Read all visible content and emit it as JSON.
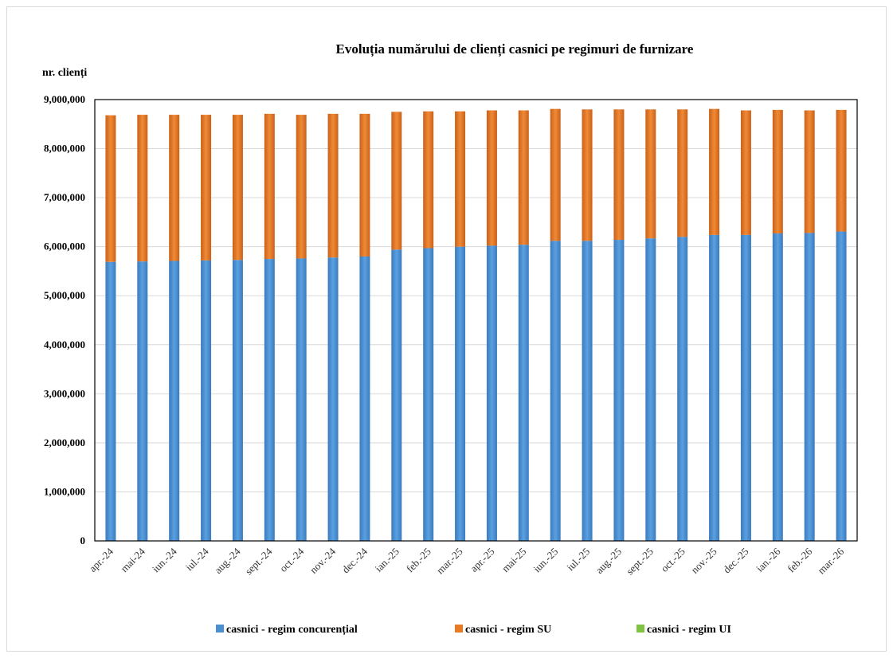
{
  "chart_data": {
    "type": "bar",
    "stacked": true,
    "title": "Evoluția numărului de clienți casnici pe regimuri de furnizare",
    "ylabel": "nr. clienți",
    "xlabel": "",
    "ylim": [
      0,
      9000000
    ],
    "yticks": [
      "0",
      "1,000,000",
      "2,000,000",
      "3,000,000",
      "4,000,000",
      "5,000,000",
      "6,000,000",
      "7,000,000",
      "8,000,000",
      "9,000,000"
    ],
    "ytick_values": [
      0,
      1000000,
      2000000,
      3000000,
      4000000,
      5000000,
      6000000,
      7000000,
      8000000,
      9000000
    ],
    "grid": true,
    "legend_position": "bottom",
    "categories": [
      "apr.-24",
      "mai-24",
      "iun.-24",
      "iul.-24",
      "aug.-24",
      "sept.-24",
      "oct.-24",
      "nov.-24",
      "dec.-24",
      "ian.-25",
      "feb.-25",
      "mar.-25",
      "apr.-25",
      "mai-25",
      "iun.-25",
      "iul.-25",
      "aug.-25",
      "sept.-25",
      "oct.-25",
      "nov.-25",
      "dec.-25",
      "ian.-26",
      "feb.-26",
      "mar.-26"
    ],
    "series": [
      {
        "name": "casnici - regim concurențial",
        "color": "#4a8fd0",
        "values": [
          5690000,
          5700000,
          5710000,
          5720000,
          5730000,
          5750000,
          5760000,
          5780000,
          5800000,
          5940000,
          5970000,
          6000000,
          6020000,
          6040000,
          6120000,
          6120000,
          6140000,
          6170000,
          6200000,
          6240000,
          6240000,
          6270000,
          6280000,
          6310000
        ]
      },
      {
        "name": "casnici - regim SU",
        "color": "#e97a23",
        "values": [
          2990000,
          2990000,
          2980000,
          2970000,
          2960000,
          2960000,
          2930000,
          2930000,
          2910000,
          2810000,
          2790000,
          2760000,
          2760000,
          2740000,
          2690000,
          2680000,
          2660000,
          2630000,
          2600000,
          2570000,
          2540000,
          2520000,
          2500000,
          2480000
        ]
      },
      {
        "name": "casnici - regim UI",
        "color": "#7fc342",
        "values": [
          0,
          0,
          0,
          0,
          0,
          0,
          0,
          0,
          0,
          0,
          0,
          0,
          0,
          0,
          0,
          0,
          0,
          0,
          0,
          0,
          0,
          0,
          0,
          0
        ]
      }
    ]
  }
}
